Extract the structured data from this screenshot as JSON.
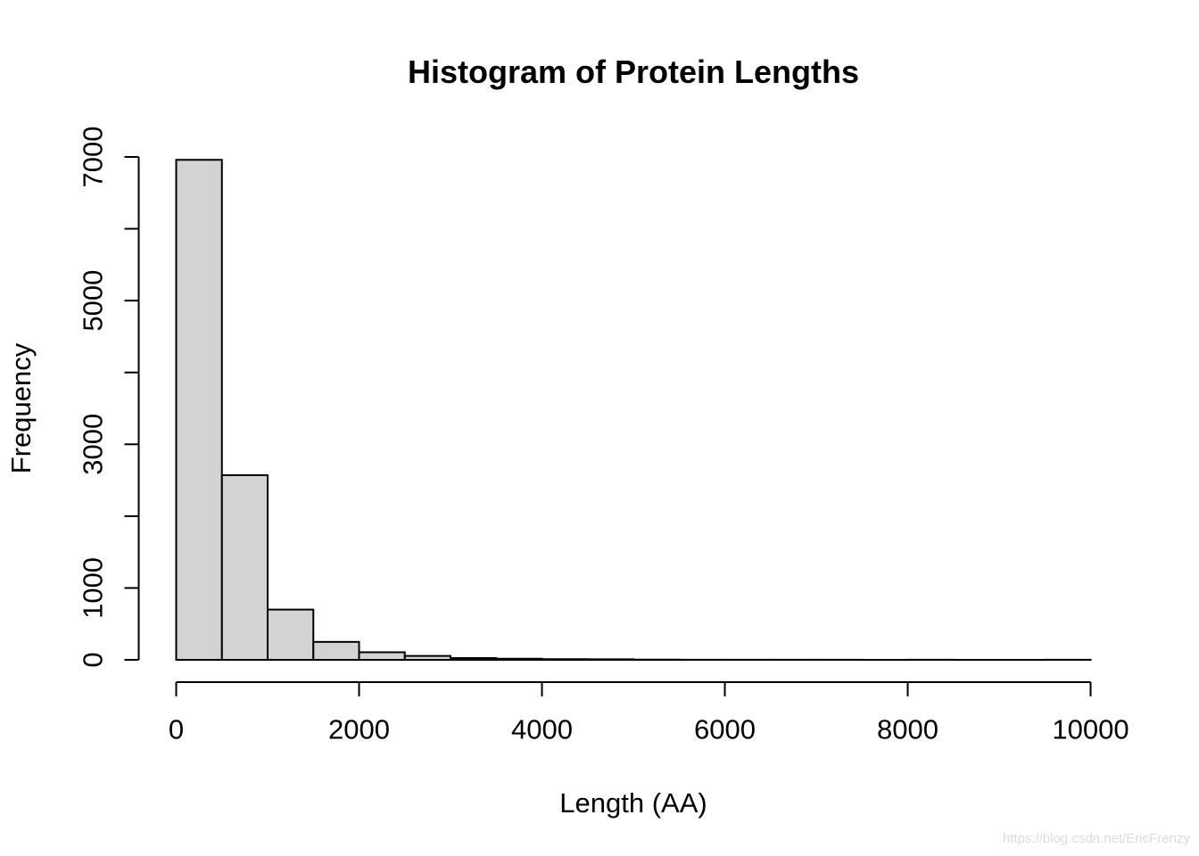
{
  "chart_data": {
    "type": "bar",
    "subtype": "histogram",
    "title": "Histogram of Protein Lengths",
    "xlabel": "Length (AA)",
    "ylabel": "Frequency",
    "xlim": [
      0,
      10000
    ],
    "ylim": [
      0,
      7000
    ],
    "grid": false,
    "legend": false,
    "bar_fill": "#d3d3d3",
    "bar_border": "#000000",
    "axis_color": "#000000",
    "bin_width": 500,
    "x_ticks": [
      {
        "value": 0,
        "label": "0"
      },
      {
        "value": 2000,
        "label": "2000"
      },
      {
        "value": 4000,
        "label": "4000"
      },
      {
        "value": 6000,
        "label": "6000"
      },
      {
        "value": 8000,
        "label": "8000"
      },
      {
        "value": 10000,
        "label": "10000"
      }
    ],
    "y_ticks": [
      {
        "value": 0,
        "label": "0"
      },
      {
        "value": 1000,
        "label": "1000"
      },
      {
        "value": 2000,
        "label": ""
      },
      {
        "value": 3000,
        "label": "3000"
      },
      {
        "value": 4000,
        "label": ""
      },
      {
        "value": 5000,
        "label": "5000"
      },
      {
        "value": 6000,
        "label": ""
      },
      {
        "value": 7000,
        "label": "7000"
      }
    ],
    "bins": [
      {
        "start": 0,
        "end": 500,
        "count": 6960
      },
      {
        "start": 500,
        "end": 1000,
        "count": 2570
      },
      {
        "start": 1000,
        "end": 1500,
        "count": 700
      },
      {
        "start": 1500,
        "end": 2000,
        "count": 250
      },
      {
        "start": 2000,
        "end": 2500,
        "count": 105
      },
      {
        "start": 2500,
        "end": 3000,
        "count": 55
      },
      {
        "start": 3000,
        "end": 3500,
        "count": 25
      },
      {
        "start": 3500,
        "end": 4000,
        "count": 15
      },
      {
        "start": 4000,
        "end": 4500,
        "count": 10
      },
      {
        "start": 4500,
        "end": 5000,
        "count": 8
      },
      {
        "start": 5000,
        "end": 5500,
        "count": 3
      },
      {
        "start": 5500,
        "end": 6000,
        "count": 2
      },
      {
        "start": 6000,
        "end": 6500,
        "count": 1
      },
      {
        "start": 6500,
        "end": 7000,
        "count": 1
      },
      {
        "start": 7000,
        "end": 7500,
        "count": 1
      },
      {
        "start": 7500,
        "end": 8000,
        "count": 0
      },
      {
        "start": 8000,
        "end": 8500,
        "count": 1
      },
      {
        "start": 8500,
        "end": 9000,
        "count": 0
      },
      {
        "start": 9000,
        "end": 9500,
        "count": 0
      },
      {
        "start": 9500,
        "end": 10000,
        "count": 1
      }
    ]
  },
  "watermark": {
    "text": "https://blog.csdn.net/EricFrenzy",
    "color": "#dbdbdb"
  }
}
